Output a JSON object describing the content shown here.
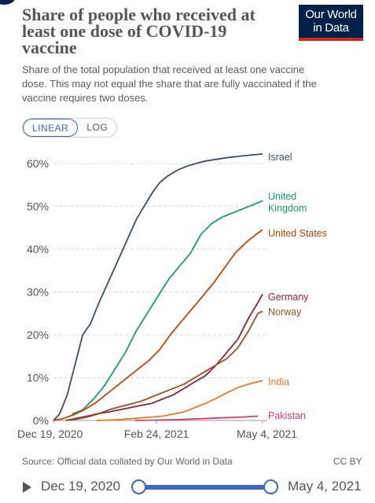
{
  "header": {
    "title_lines": [
      "Share of people who received at",
      "least one dose of COVID-19",
      "vaccine"
    ],
    "subtitle_lines": [
      "Share of the total population that received at least one vaccine",
      "dose. This may not equal the share that are fully vaccinated if the",
      "vaccine requires two doses."
    ],
    "logo_lines": [
      "Our World",
      "in Data"
    ]
  },
  "controls": {
    "linear_label": "LINEAR",
    "log_label": "LOG",
    "active_scale": "linear"
  },
  "footer": {
    "source": "Source: Official data collated by Our World in Data",
    "license": "CC BY"
  },
  "timeline": {
    "start_label": "Dec 19, 2020",
    "end_label": "May 4, 2021"
  },
  "colors": {
    "accent": "#3c67c2",
    "logo_bg": "#002147",
    "logo_bar": "#ce261e"
  },
  "chart_data": {
    "type": "line",
    "title": "Share of people who received at least one dose of COVID-19 vaccine",
    "xlim": [
      "2020-12-19",
      "2021-05-04"
    ],
    "ylim": [
      0,
      62
    ],
    "y_ticks": [
      0,
      10,
      20,
      30,
      40,
      50,
      60
    ],
    "y_tick_labels": [
      "0%",
      "10%",
      "20%",
      "30%",
      "40%",
      "50%",
      "60%"
    ],
    "x_ticks": [
      "2020-12-19",
      "2021-02-24",
      "2021-05-04"
    ],
    "x_tick_labels": [
      "Dec 19, 2020",
      "Feb 24, 2021",
      "May 4, 2021"
    ],
    "grid": "horizontal-dashed",
    "series": [
      {
        "name": "Israel",
        "color": "#3c4e66",
        "label_lines": [
          "Israel"
        ],
        "points": [
          [
            "2020-12-19",
            0
          ],
          [
            "2020-12-23",
            1.5
          ],
          [
            "2020-12-28",
            6
          ],
          [
            "2021-01-02",
            13
          ],
          [
            "2021-01-07",
            20
          ],
          [
            "2021-01-12",
            22.5
          ],
          [
            "2021-01-17",
            27
          ],
          [
            "2021-01-22",
            31
          ],
          [
            "2021-01-27",
            35
          ],
          [
            "2021-02-01",
            39
          ],
          [
            "2021-02-06",
            43
          ],
          [
            "2021-02-11",
            47
          ],
          [
            "2021-02-16",
            50
          ],
          [
            "2021-02-21",
            53
          ],
          [
            "2021-02-26",
            55.5
          ],
          [
            "2021-03-03",
            57
          ],
          [
            "2021-03-10",
            58.5
          ],
          [
            "2021-03-17",
            59.5
          ],
          [
            "2021-03-27",
            60.5
          ],
          [
            "2021-04-10",
            61.3
          ],
          [
            "2021-04-22",
            61.8
          ],
          [
            "2021-05-04",
            62.2
          ]
        ]
      },
      {
        "name": "United Kingdom",
        "color": "#18a062",
        "label_lines": [
          "United",
          "Kingdom"
        ],
        "points": [
          [
            "2020-12-31",
            1.5
          ],
          [
            "2021-01-07",
            2.5
          ],
          [
            "2021-01-14",
            5
          ],
          [
            "2021-01-21",
            8
          ],
          [
            "2021-01-28",
            12
          ],
          [
            "2021-02-04",
            16
          ],
          [
            "2021-02-11",
            21
          ],
          [
            "2021-02-18",
            25
          ],
          [
            "2021-02-25",
            29
          ],
          [
            "2021-03-04",
            33
          ],
          [
            "2021-03-11",
            36
          ],
          [
            "2021-03-18",
            39
          ],
          [
            "2021-03-25",
            43.5
          ],
          [
            "2021-04-01",
            46
          ],
          [
            "2021-04-08",
            47.5
          ],
          [
            "2021-04-15",
            48.5
          ],
          [
            "2021-04-22",
            49.5
          ],
          [
            "2021-04-29",
            50.5
          ],
          [
            "2021-05-04",
            51.3
          ]
        ]
      },
      {
        "name": "United States",
        "color": "#c1440e",
        "label_lines": [
          "United States"
        ],
        "points": [
          [
            "2020-12-19",
            0
          ],
          [
            "2020-12-25",
            0.4
          ],
          [
            "2021-01-01",
            1.3
          ],
          [
            "2021-01-08",
            2.5
          ],
          [
            "2021-01-15",
            4
          ],
          [
            "2021-01-22",
            6
          ],
          [
            "2021-01-29",
            8
          ],
          [
            "2021-02-05",
            10
          ],
          [
            "2021-02-12",
            12
          ],
          [
            "2021-02-19",
            14
          ],
          [
            "2021-02-26",
            16.5
          ],
          [
            "2021-03-05",
            20
          ],
          [
            "2021-03-12",
            23
          ],
          [
            "2021-03-19",
            26
          ],
          [
            "2021-03-26",
            29
          ],
          [
            "2021-04-02",
            32
          ],
          [
            "2021-04-09",
            35.5
          ],
          [
            "2021-04-16",
            39
          ],
          [
            "2021-04-23",
            41.5
          ],
          [
            "2021-04-30",
            43.5
          ],
          [
            "2021-05-04",
            44.5
          ]
        ]
      },
      {
        "name": "Germany",
        "color": "#8c2240",
        "label_lines": [
          "Germany"
        ],
        "points": [
          [
            "2020-12-27",
            0
          ],
          [
            "2021-01-03",
            0.5
          ],
          [
            "2021-01-10",
            1
          ],
          [
            "2021-01-17",
            1.6
          ],
          [
            "2021-01-24",
            2
          ],
          [
            "2021-01-31",
            2.5
          ],
          [
            "2021-02-07",
            3
          ],
          [
            "2021-02-14",
            3.5
          ],
          [
            "2021-02-21",
            4
          ],
          [
            "2021-02-28",
            5
          ],
          [
            "2021-03-07",
            6
          ],
          [
            "2021-03-14",
            7.5
          ],
          [
            "2021-03-21",
            9
          ],
          [
            "2021-03-28",
            10.5
          ],
          [
            "2021-04-04",
            13
          ],
          [
            "2021-04-11",
            16
          ],
          [
            "2021-04-18",
            19
          ],
          [
            "2021-04-25",
            24
          ],
          [
            "2021-05-01",
            27.5
          ],
          [
            "2021-05-04",
            29.5
          ]
        ]
      },
      {
        "name": "Norway",
        "color": "#9a5129",
        "label_lines": [
          "Norway"
        ],
        "points": [
          [
            "2020-12-27",
            0
          ],
          [
            "2021-01-03",
            0.3
          ],
          [
            "2021-01-10",
            0.8
          ],
          [
            "2021-01-17",
            1.5
          ],
          [
            "2021-01-24",
            2.5
          ],
          [
            "2021-01-31",
            3.2
          ],
          [
            "2021-02-07",
            3.8
          ],
          [
            "2021-02-14",
            4.5
          ],
          [
            "2021-02-21",
            5.5
          ],
          [
            "2021-02-28",
            6.5
          ],
          [
            "2021-03-07",
            7.5
          ],
          [
            "2021-03-14",
            8.5
          ],
          [
            "2021-03-21",
            10
          ],
          [
            "2021-03-28",
            11.5
          ],
          [
            "2021-04-04",
            13
          ],
          [
            "2021-04-11",
            14.5
          ],
          [
            "2021-04-18",
            17
          ],
          [
            "2021-04-25",
            21
          ],
          [
            "2021-05-01",
            25
          ],
          [
            "2021-05-04",
            25.5
          ]
        ]
      },
      {
        "name": "India",
        "color": "#e27d20",
        "label_lines": [
          "India"
        ],
        "points": [
          [
            "2021-01-16",
            0
          ],
          [
            "2021-01-23",
            0.1
          ],
          [
            "2021-01-31",
            0.2
          ],
          [
            "2021-02-07",
            0.4
          ],
          [
            "2021-02-14",
            0.6
          ],
          [
            "2021-02-21",
            0.8
          ],
          [
            "2021-02-28",
            1
          ],
          [
            "2021-03-07",
            1.5
          ],
          [
            "2021-03-14",
            2
          ],
          [
            "2021-03-21",
            3
          ],
          [
            "2021-03-28",
            4
          ],
          [
            "2021-04-04",
            5.2
          ],
          [
            "2021-04-11",
            6.5
          ],
          [
            "2021-04-18",
            7.7
          ],
          [
            "2021-04-25",
            8.5
          ],
          [
            "2021-05-04",
            9.3
          ]
        ]
      },
      {
        "name": "Pakistan",
        "color": "#d73c72",
        "label_lines": [
          "Pakistan"
        ],
        "points": [
          [
            "2021-02-10",
            0
          ],
          [
            "2021-02-24",
            0.1
          ],
          [
            "2021-03-10",
            0.2
          ],
          [
            "2021-03-24",
            0.4
          ],
          [
            "2021-04-07",
            0.6
          ],
          [
            "2021-04-21",
            0.8
          ],
          [
            "2021-05-01",
            1
          ]
        ]
      }
    ]
  }
}
